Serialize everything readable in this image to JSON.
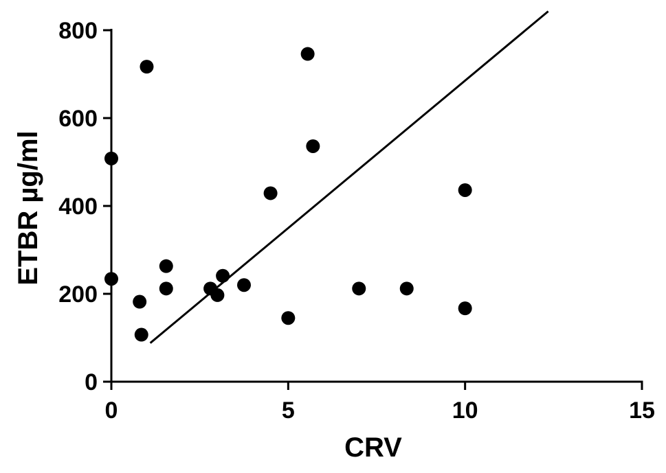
{
  "chart_data": {
    "type": "scatter",
    "title": "",
    "xlabel": "CRV",
    "ylabel": "ETBR µg/ml",
    "xlim": [
      0,
      15
    ],
    "ylim": [
      0,
      800
    ],
    "x_ticks": [
      0,
      5,
      10,
      15
    ],
    "y_ticks": [
      0,
      200,
      400,
      600,
      800
    ],
    "x_tick_labels": [
      "0",
      "5",
      "10",
      "15"
    ],
    "y_tick_labels": [
      "0",
      "200",
      "400",
      "600",
      "800"
    ],
    "grid": false,
    "legend": "none",
    "series": [
      {
        "points": [
          {
            "x": 0.0,
            "y": 508
          },
          {
            "x": 0.0,
            "y": 234
          },
          {
            "x": 1.0,
            "y": 717
          },
          {
            "x": 0.8,
            "y": 182
          },
          {
            "x": 0.85,
            "y": 107
          },
          {
            "x": 1.55,
            "y": 263
          },
          {
            "x": 1.55,
            "y": 212
          },
          {
            "x": 2.8,
            "y": 212
          },
          {
            "x": 3.0,
            "y": 197
          },
          {
            "x": 3.15,
            "y": 241
          },
          {
            "x": 3.75,
            "y": 220
          },
          {
            "x": 4.5,
            "y": 429
          },
          {
            "x": 5.0,
            "y": 145
          },
          {
            "x": 5.55,
            "y": 746
          },
          {
            "x": 5.7,
            "y": 536
          },
          {
            "x": 7.0,
            "y": 212
          },
          {
            "x": 8.35,
            "y": 212
          },
          {
            "x": 10.0,
            "y": 436
          },
          {
            "x": 10.0,
            "y": 167
          }
        ]
      }
    ],
    "regression_line": {
      "x": [
        1.1,
        12.35
      ],
      "y": [
        88,
        843
      ]
    },
    "colors": {
      "points": "#000000",
      "line": "#000000",
      "axes": "#000000"
    }
  }
}
